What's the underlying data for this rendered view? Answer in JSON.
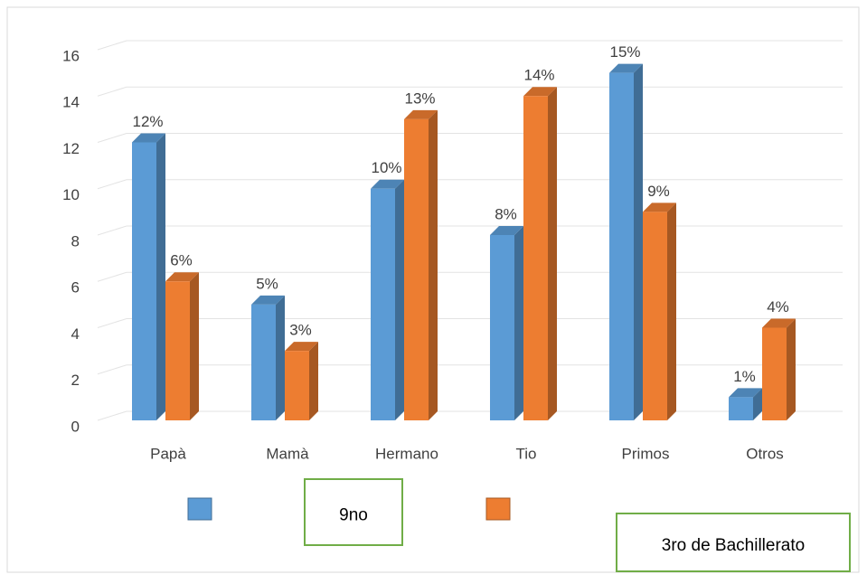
{
  "chart_data": {
    "type": "bar3d",
    "categories": [
      "Papà",
      "Mamà",
      "Hermano",
      "Tio",
      "Primos",
      "Otros"
    ],
    "series": [
      {
        "name": "9no",
        "color": "#5b9bd5",
        "values": [
          12,
          5,
          10,
          8,
          15,
          1
        ],
        "value_labels": [
          "12%",
          "5%",
          "10%",
          "8%",
          "15%",
          "1%"
        ]
      },
      {
        "name": "3ro de Bachillerato",
        "color": "#ed7d31",
        "values": [
          6,
          3,
          13,
          14,
          9,
          4
        ],
        "value_labels": [
          "6%",
          "3%",
          "13%",
          "14%",
          "9%",
          "4%"
        ]
      }
    ],
    "ylim": [
      0,
      16
    ],
    "yticks": [
      0,
      2,
      4,
      6,
      8,
      10,
      12,
      14,
      16
    ],
    "grid": true
  }
}
